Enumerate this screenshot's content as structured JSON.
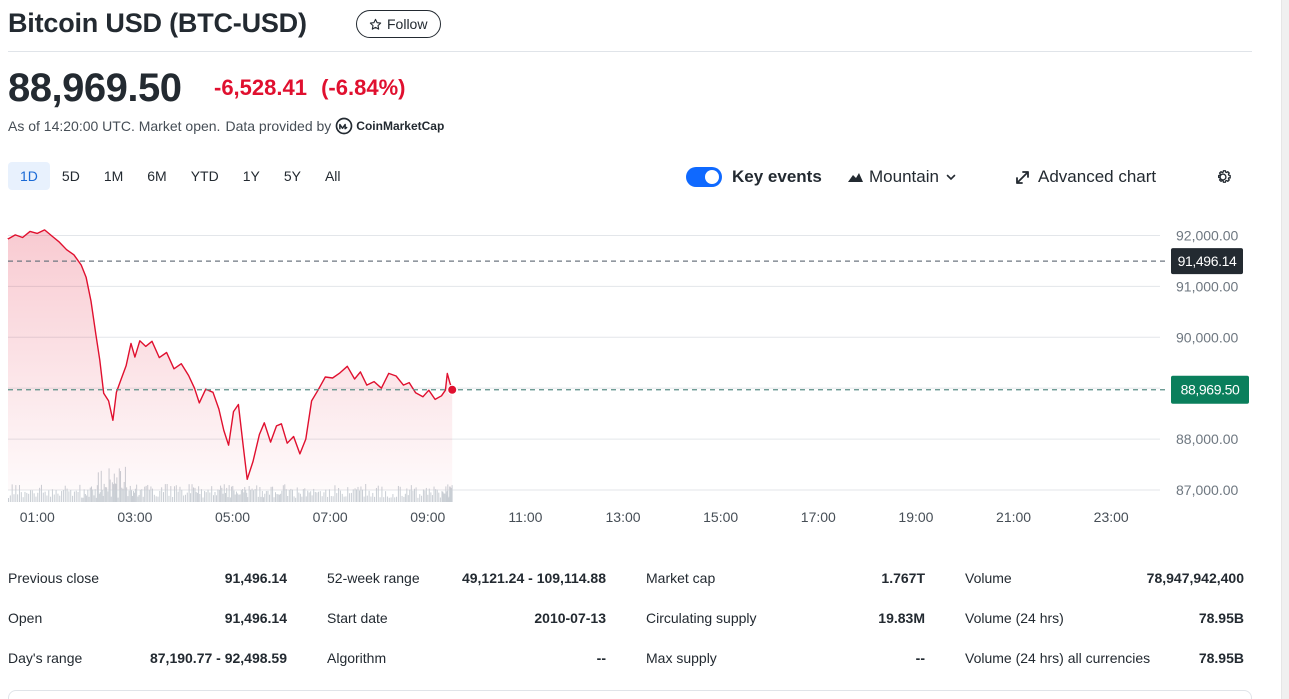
{
  "header": {
    "title": "Bitcoin USD (BTC-USD)",
    "follow_label": "Follow"
  },
  "quote": {
    "price": "88,969.50",
    "change": "-6,528.41",
    "change_pct": "(-6.84%)",
    "as_of": "As of 14:20:00 UTC. Market open.",
    "provided_by": "Data provided by",
    "provider": "CoinMarketCap",
    "negative_color": "#e0102f"
  },
  "ranges": [
    "1D",
    "5D",
    "1M",
    "6M",
    "YTD",
    "1Y",
    "5Y",
    "All"
  ],
  "active_range": "1D",
  "toolbar": {
    "key_events_label": "Key events",
    "key_events_on": true,
    "chart_type_label": "Mountain",
    "advanced_label": "Advanced chart",
    "icons": [
      "mountain-icon",
      "chevron-down-icon",
      "expand-icon",
      "gear-icon"
    ]
  },
  "chart_data": {
    "type": "area",
    "x_ticks": [
      "01:00",
      "03:00",
      "05:00",
      "07:00",
      "09:00",
      "11:00",
      "13:00",
      "15:00",
      "17:00",
      "19:00",
      "21:00",
      "23:00"
    ],
    "y_ticks": [
      "92,000.00",
      "91,000.00",
      "90,000.00",
      "88,000.00",
      "87,000.00"
    ],
    "ylim": [
      87000,
      92500
    ],
    "xlim_hours": [
      0.4,
      24
    ],
    "previous_close": 91496.14,
    "previous_close_label": "91,496.14",
    "current_price": 88969.5,
    "current_price_label": "88,969.50",
    "line_color": "#e0102f",
    "prev_close_label_bg": "#232a31",
    "current_label_bg": "#0a7f5c",
    "series": [
      {
        "values": [
          [
            0.4,
            91930
          ],
          [
            0.55,
            92010
          ],
          [
            0.7,
            91960
          ],
          [
            0.85,
            92080
          ],
          [
            1.0,
            92040
          ],
          [
            1.15,
            92110
          ],
          [
            1.3,
            91990
          ],
          [
            1.45,
            91870
          ],
          [
            1.6,
            91720
          ],
          [
            1.75,
            91620
          ],
          [
            1.9,
            91420
          ],
          [
            2.0,
            91180
          ],
          [
            2.1,
            90710
          ],
          [
            2.2,
            90050
          ],
          [
            2.28,
            89550
          ],
          [
            2.36,
            88900
          ],
          [
            2.46,
            88750
          ],
          [
            2.55,
            88370
          ],
          [
            2.62,
            88920
          ],
          [
            2.72,
            89180
          ],
          [
            2.82,
            89440
          ],
          [
            2.92,
            89880
          ],
          [
            3.0,
            89610
          ],
          [
            3.1,
            89930
          ],
          [
            3.22,
            89820
          ],
          [
            3.35,
            89920
          ],
          [
            3.5,
            89600
          ],
          [
            3.65,
            89700
          ],
          [
            3.8,
            89380
          ],
          [
            3.95,
            89480
          ],
          [
            4.1,
            89250
          ],
          [
            4.22,
            89000
          ],
          [
            4.32,
            88710
          ],
          [
            4.45,
            88980
          ],
          [
            4.6,
            88920
          ],
          [
            4.72,
            88590
          ],
          [
            4.82,
            88170
          ],
          [
            4.92,
            87880
          ],
          [
            5.02,
            88540
          ],
          [
            5.12,
            88680
          ],
          [
            5.22,
            87850
          ],
          [
            5.3,
            87210
          ],
          [
            5.42,
            87560
          ],
          [
            5.55,
            88090
          ],
          [
            5.65,
            88320
          ],
          [
            5.78,
            87940
          ],
          [
            5.9,
            88260
          ],
          [
            6.0,
            88300
          ],
          [
            6.12,
            87920
          ],
          [
            6.25,
            88050
          ],
          [
            6.38,
            87710
          ],
          [
            6.5,
            88000
          ],
          [
            6.62,
            88750
          ],
          [
            6.75,
            88960
          ],
          [
            6.9,
            89220
          ],
          [
            7.05,
            89200
          ],
          [
            7.2,
            89300
          ],
          [
            7.35,
            89430
          ],
          [
            7.5,
            89180
          ],
          [
            7.62,
            89320
          ],
          [
            7.75,
            89060
          ],
          [
            7.9,
            89130
          ],
          [
            8.05,
            89000
          ],
          [
            8.2,
            89290
          ],
          [
            8.35,
            89240
          ],
          [
            8.5,
            89060
          ],
          [
            8.62,
            89110
          ],
          [
            8.75,
            88910
          ],
          [
            8.9,
            88830
          ],
          [
            9.02,
            88960
          ],
          [
            9.15,
            88780
          ],
          [
            9.28,
            88850
          ],
          [
            9.36,
            88960
          ],
          [
            9.4,
            89290
          ],
          [
            9.45,
            89110
          ],
          [
            9.5,
            88969.5
          ]
        ]
      }
    ]
  },
  "stats": [
    [
      {
        "label": "Previous close",
        "value": "91,496.14"
      },
      {
        "label": "Open",
        "value": "91,496.14"
      },
      {
        "label": "Day's range",
        "value": "87,190.77 - 92,498.59"
      }
    ],
    [
      {
        "label": "52-week range",
        "value": "49,121.24 - 109,114.88"
      },
      {
        "label": "Start date",
        "value": "2010-07-13"
      },
      {
        "label": "Algorithm",
        "value": "--"
      }
    ],
    [
      {
        "label": "Market cap",
        "value": "1.767T"
      },
      {
        "label": "Circulating supply",
        "value": "19.83M"
      },
      {
        "label": "Max supply",
        "value": "--"
      }
    ],
    [
      {
        "label": "Volume",
        "value": "78,947,942,400"
      },
      {
        "label": "Volume (24 hrs)",
        "value": "78.95B"
      },
      {
        "label": "Volume (24 hrs) all currencies",
        "value": "78.95B"
      }
    ]
  ]
}
